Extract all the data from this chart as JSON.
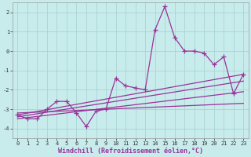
{
  "xlabel": "Windchill (Refroidissement éolien,°C)",
  "background_color": "#c8ecec",
  "grid_color": "#aad4d4",
  "line_color": "#993399",
  "xlim": [
    -0.5,
    23.5
  ],
  "ylim": [
    -4.5,
    2.5
  ],
  "yticks": [
    -4,
    -3,
    -2,
    -1,
    0,
    1,
    2
  ],
  "xticks": [
    0,
    1,
    2,
    3,
    4,
    5,
    6,
    7,
    8,
    9,
    10,
    11,
    12,
    13,
    14,
    15,
    16,
    17,
    18,
    19,
    20,
    21,
    22,
    23
  ],
  "hours": [
    0,
    1,
    2,
    3,
    4,
    5,
    6,
    7,
    8,
    9,
    10,
    11,
    12,
    13,
    14,
    15,
    16,
    17,
    18,
    19,
    20,
    21,
    22,
    23
  ],
  "main_values": [
    -3.3,
    -3.5,
    -3.5,
    -3.0,
    -2.6,
    -2.6,
    -3.2,
    -3.9,
    -3.1,
    -3.0,
    -1.4,
    -1.8,
    -1.9,
    -2.0,
    1.1,
    2.3,
    0.7,
    0.0,
    0.0,
    -0.1,
    -0.7,
    -0.3,
    -2.2,
    -1.2
  ],
  "trend_lines": [
    {
      "x": [
        0,
        23
      ],
      "y": [
        -3.3,
        -1.2
      ]
    },
    {
      "x": [
        0,
        23
      ],
      "y": [
        -3.4,
        -1.55
      ]
    },
    {
      "x": [
        0,
        23
      ],
      "y": [
        -3.5,
        -2.1
      ]
    },
    {
      "x": [
        0,
        23
      ],
      "y": [
        -3.2,
        -2.7
      ]
    }
  ],
  "marker": "+",
  "markersize": 4,
  "linewidth": 0.9,
  "tick_fontsize": 5.0,
  "label_fontsize": 6.0
}
